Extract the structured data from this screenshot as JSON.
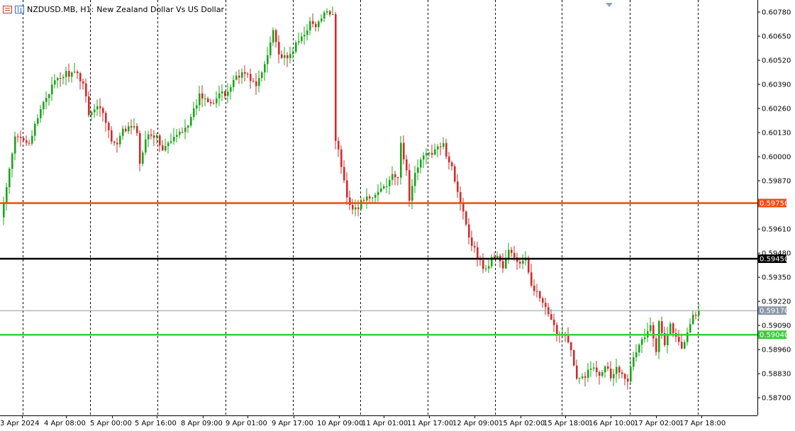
{
  "header": {
    "symbol": "NZDUSD.MB, H1:",
    "description": "New Zealand Dollar Vs US Dollar",
    "icons": [
      "one-click-trading-icon",
      "market-depth-icon"
    ]
  },
  "colors": {
    "bull": "#1aa51a",
    "bear": "#d42a2a",
    "grid": "#000000",
    "resistance": "#f04a14",
    "pivot": "#000000",
    "support": "#3ccc3c",
    "bid": "#8a98a8"
  },
  "chart_data": {
    "type": "candlestick",
    "title": "NZDUSD.MB, H1: New Zealand Dollar Vs US Dollar",
    "ylim": [
      0.58605,
      0.60845
    ],
    "y_ticks": [
      "0.60780",
      "0.60650",
      "0.60520",
      "0.60390",
      "0.60260",
      "0.60130",
      "0.60000",
      "0.59870",
      "0.59610",
      "0.59480",
      "0.59350",
      "0.59220",
      "0.59090",
      "0.58960",
      "0.58830",
      "0.58700"
    ],
    "x_ticks": [
      "3 Apr 2024",
      "4 Apr 08:00",
      "5 Apr 00:00",
      "5 Apr 16:00",
      "8 Apr 09:00",
      "9 Apr 01:00",
      "9 Apr 17:00",
      "10 Apr 09:00",
      "11 Apr 01:00",
      "11 Apr 17:00",
      "12 Apr 09:00",
      "15 Apr 02:00",
      "15 Apr 18:00",
      "16 Apr 10:00",
      "17 Apr 02:00",
      "17 Apr 18:00"
    ],
    "lines": [
      {
        "name": "resistance",
        "price": 0.5975,
        "label": "0.59750"
      },
      {
        "name": "pivot",
        "price": 0.5945,
        "label": "0.59450"
      },
      {
        "name": "bid",
        "price": 0.5917,
        "label": "0.59170"
      },
      {
        "name": "support",
        "price": 0.5904,
        "label": "0.59040"
      }
    ],
    "anchors": [
      [
        0,
        0.5975
      ],
      [
        2,
        0.5992
      ],
      [
        4,
        0.601
      ],
      [
        7,
        0.601
      ],
      [
        9,
        0.6008
      ],
      [
        12,
        0.602
      ],
      [
        14,
        0.603
      ],
      [
        18,
        0.604
      ],
      [
        22,
        0.6045
      ],
      [
        26,
        0.6044
      ],
      [
        28,
        0.604
      ],
      [
        30,
        0.6024
      ],
      [
        34,
        0.6027
      ],
      [
        36,
        0.602
      ],
      [
        38,
        0.6008
      ],
      [
        40,
        0.6006
      ],
      [
        42,
        0.6014
      ],
      [
        45,
        0.6016
      ],
      [
        47,
        0.6014
      ],
      [
        48,
        0.5995
      ],
      [
        50,
        0.6011
      ],
      [
        52,
        0.6013
      ],
      [
        54,
        0.601
      ],
      [
        56,
        0.6004
      ],
      [
        59,
        0.6008
      ],
      [
        62,
        0.6013
      ],
      [
        66,
        0.602
      ],
      [
        69,
        0.6033
      ],
      [
        72,
        0.6031
      ],
      [
        74,
        0.603
      ],
      [
        76,
        0.6034
      ],
      [
        78,
        0.6033
      ],
      [
        80,
        0.6038
      ],
      [
        82,
        0.6044
      ],
      [
        85,
        0.6045
      ],
      [
        87,
        0.6042
      ],
      [
        89,
        0.6038
      ],
      [
        91,
        0.6045
      ],
      [
        93,
        0.6055
      ],
      [
        95,
        0.607
      ],
      [
        97,
        0.6055
      ],
      [
        100,
        0.6052
      ],
      [
        102,
        0.6058
      ],
      [
        104,
        0.6062
      ],
      [
        106,
        0.6067
      ],
      [
        108,
        0.6072
      ],
      [
        110,
        0.607
      ],
      [
        112,
        0.6074
      ],
      [
        114,
        0.6079
      ],
      [
        116,
        0.6077
      ],
      [
        117,
        0.601
      ],
      [
        119,
        0.5995
      ],
      [
        121,
        0.5978
      ],
      [
        123,
        0.5973
      ],
      [
        125,
        0.5972
      ],
      [
        127,
        0.5978
      ],
      [
        129,
        0.5976
      ],
      [
        131,
        0.5979
      ],
      [
        133,
        0.5983
      ],
      [
        135,
        0.5985
      ],
      [
        137,
        0.5992
      ],
      [
        139,
        0.5987
      ],
      [
        140,
        0.6007
      ],
      [
        142,
        0.5992
      ],
      [
        143,
        0.5977
      ],
      [
        145,
        0.599
      ],
      [
        147,
        0.6
      ],
      [
        149,
        0.6001
      ],
      [
        151,
        0.6002
      ],
      [
        153,
        0.6004
      ],
      [
        155,
        0.6009
      ],
      [
        156,
        0.6001
      ],
      [
        158,
        0.5995
      ],
      [
        160,
        0.598
      ],
      [
        162,
        0.5972
      ],
      [
        164,
        0.5957
      ],
      [
        166,
        0.595
      ],
      [
        168,
        0.5943
      ],
      [
        170,
        0.5939
      ],
      [
        172,
        0.5945
      ],
      [
        174,
        0.5947
      ],
      [
        176,
        0.594
      ],
      [
        178,
        0.5949
      ],
      [
        180,
        0.5946
      ],
      [
        182,
        0.5942
      ],
      [
        184,
        0.5944
      ],
      [
        186,
        0.5932
      ],
      [
        188,
        0.5926
      ],
      [
        190,
        0.5921
      ],
      [
        192,
        0.5914
      ],
      [
        194,
        0.5908
      ],
      [
        196,
        0.5904
      ],
      [
        198,
        0.5905
      ],
      [
        200,
        0.5895
      ],
      [
        202,
        0.5879
      ],
      [
        204,
        0.5881
      ],
      [
        206,
        0.5884
      ],
      [
        208,
        0.5887
      ],
      [
        210,
        0.5883
      ],
      [
        212,
        0.5888
      ],
      [
        214,
        0.5882
      ],
      [
        216,
        0.5886
      ],
      [
        218,
        0.5884
      ],
      [
        220,
        0.588
      ],
      [
        222,
        0.5891
      ],
      [
        224,
        0.5899
      ],
      [
        226,
        0.5903
      ],
      [
        228,
        0.5908
      ],
      [
        230,
        0.5895
      ],
      [
        231,
        0.5913
      ],
      [
        233,
        0.59
      ],
      [
        235,
        0.591
      ],
      [
        237,
        0.5902
      ],
      [
        239,
        0.5897
      ],
      [
        241,
        0.5906
      ],
      [
        243,
        0.5914
      ],
      [
        245,
        0.5917
      ]
    ]
  }
}
